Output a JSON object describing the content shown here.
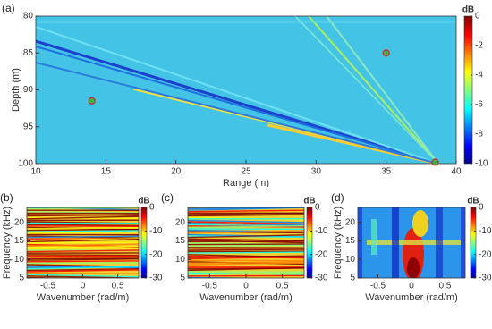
{
  "chart_data": [
    {
      "type": "heatmap",
      "panel": "(a)",
      "xlabel": "Range (m)",
      "ylabel": "Depth (m)",
      "xlim": [
        10,
        40
      ],
      "xticks": [
        10,
        15,
        20,
        25,
        30,
        35,
        40
      ],
      "ylim": [
        80,
        100
      ],
      "yticks": [
        80,
        85,
        90,
        95,
        100
      ],
      "y_reversed": true,
      "colormap": "jet",
      "colorbar_label": "dB",
      "clim": [
        -10,
        0
      ],
      "cticks": [
        0,
        -2,
        -4,
        -6,
        -8,
        -10
      ],
      "markers": {
        "x": [
          14,
          35,
          38.5
        ],
        "y": [
          91.5,
          85,
          99.8
        ],
        "color": "#3cb44b",
        "edge": "#d62728"
      }
    },
    {
      "type": "heatmap",
      "panel": "(b)",
      "xlabel": "Wavenumber (rad/m)",
      "ylabel": "Frequency (kHz)",
      "xlim": [
        -0.8,
        0.8
      ],
      "xticks": [
        -0.5,
        0,
        0.5
      ],
      "ylim": [
        5,
        24
      ],
      "yticks": [
        5,
        10,
        15,
        20
      ],
      "colormap": "jet",
      "colorbar_label": "dB",
      "clim": [
        -30,
        0
      ],
      "cticks": [
        0,
        -10,
        -20,
        -30
      ]
    },
    {
      "type": "heatmap",
      "panel": "(c)",
      "xlabel": "Wavenumber (rad/m)",
      "xlim": [
        -0.8,
        0.8
      ],
      "xticks": [
        -0.5,
        0,
        0.5
      ],
      "ylim": [
        5,
        24
      ],
      "yticks": [
        5,
        10,
        15,
        20
      ],
      "colormap": "jet",
      "colorbar_label": "dB",
      "clim": [
        -30,
        0
      ],
      "cticks": [
        0,
        -10,
        -20,
        -30
      ]
    },
    {
      "type": "heatmap",
      "panel": "(d)",
      "xlabel": "Wavenumber (rad/m)",
      "ylabel": "Frequency (kHz)",
      "xlim": [
        -0.8,
        0.8
      ],
      "xticks": [
        -0.5,
        0,
        0.5
      ],
      "ylim": [
        5,
        24
      ],
      "yticks": [
        5,
        10,
        15,
        20
      ],
      "colormap": "jet",
      "colorbar_label": "dB",
      "clim": [
        -30,
        0
      ],
      "cticks": [
        0,
        -10,
        -20,
        -30
      ]
    }
  ]
}
